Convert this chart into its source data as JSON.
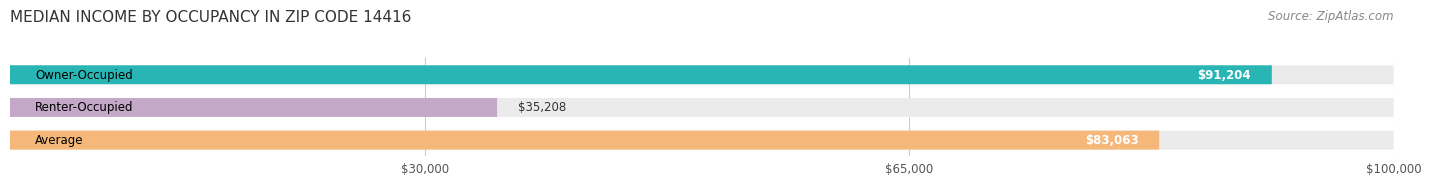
{
  "title": "MEDIAN INCOME BY OCCUPANCY IN ZIP CODE 14416",
  "source": "Source: ZipAtlas.com",
  "categories": [
    "Owner-Occupied",
    "Renter-Occupied",
    "Average"
  ],
  "values": [
    91204,
    35208,
    83063
  ],
  "labels": [
    "$91,204",
    "$35,208",
    "$83,063"
  ],
  "colors": [
    "#2ab5b5",
    "#c4a8c8",
    "#f5b87a"
  ],
  "bar_bg_color": "#ebebeb",
  "xlim": [
    0,
    100000
  ],
  "xticks": [
    30000,
    65000,
    100000
  ],
  "xticklabels": [
    "$30,000",
    "$65,000",
    "$100,000"
  ],
  "title_fontsize": 11,
  "source_fontsize": 8.5,
  "label_fontsize": 8.5,
  "cat_fontsize": 8.5,
  "bar_height": 0.58,
  "background_color": "#ffffff"
}
